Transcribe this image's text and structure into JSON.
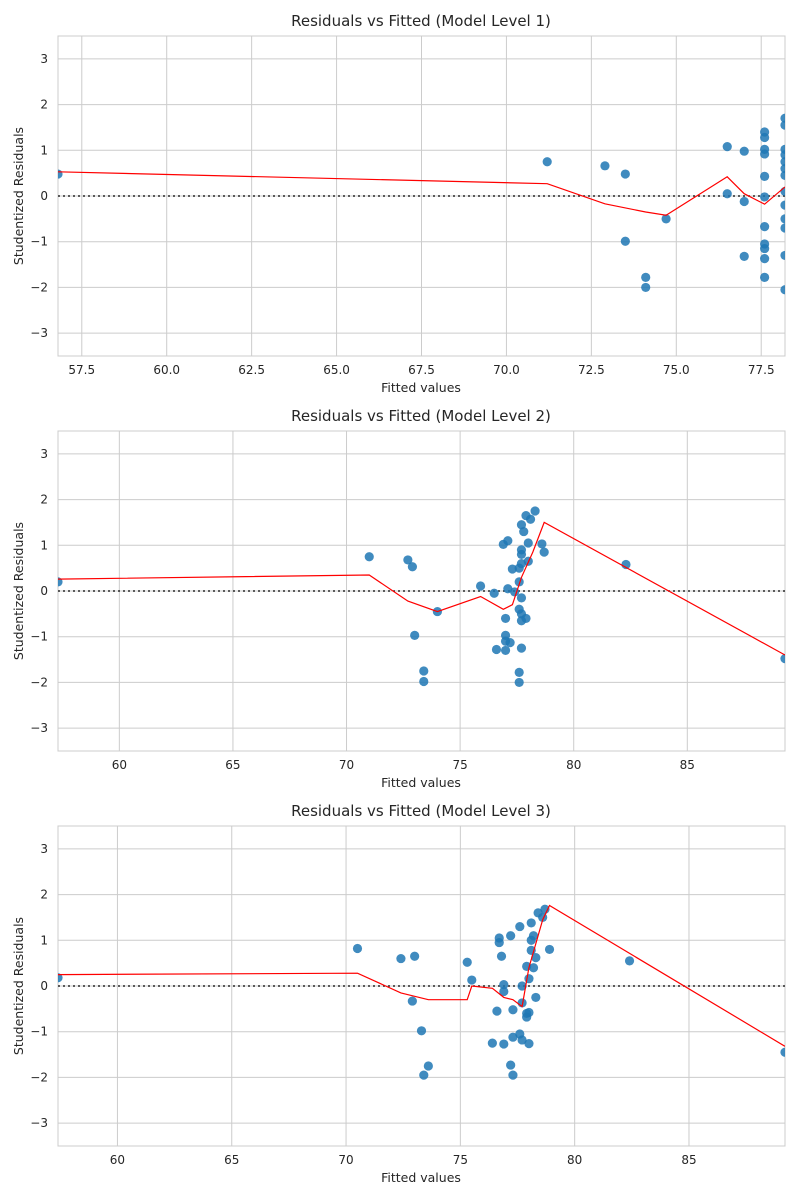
{
  "colors": {
    "points": "#1f77b4",
    "lowess": "#ff0000",
    "zero_line": "#262626",
    "grid": "#cccccc",
    "background": "#ffffff"
  },
  "chart_data": [
    {
      "type": "scatter",
      "title": "Residuals vs Fitted (Model Level 1)",
      "xlabel": "Fitted values",
      "ylabel": "Studentized Residuals",
      "xlim": [
        56.8,
        78.2
      ],
      "ylim": [
        -3.5,
        3.5
      ],
      "xticks": [
        "57.5",
        "60.0",
        "62.5",
        "65.0",
        "67.5",
        "70.0",
        "72.5",
        "75.0",
        "77.5"
      ],
      "yticks": [
        "3",
        "2",
        "1",
        "0",
        "−1",
        "−2",
        "−3"
      ],
      "grid": true,
      "reference_line": 0,
      "points": [
        [
          56.8,
          0.48
        ],
        [
          71.2,
          0.75
        ],
        [
          72.9,
          0.66
        ],
        [
          73.5,
          0.48
        ],
        [
          73.5,
          -0.99
        ],
        [
          74.1,
          -1.78
        ],
        [
          74.1,
          -2.0
        ],
        [
          74.7,
          -0.5
        ],
        [
          76.5,
          1.08
        ],
        [
          76.5,
          0.05
        ],
        [
          77.0,
          0.98
        ],
        [
          77.0,
          -0.12
        ],
        [
          77.0,
          -1.32
        ],
        [
          77.6,
          1.4
        ],
        [
          77.6,
          1.28
        ],
        [
          77.6,
          1.02
        ],
        [
          77.6,
          0.92
        ],
        [
          77.6,
          0.43
        ],
        [
          77.6,
          -0.02
        ],
        [
          77.6,
          -0.67
        ],
        [
          77.6,
          -1.05
        ],
        [
          77.6,
          -1.15
        ],
        [
          77.6,
          -1.37
        ],
        [
          77.6,
          -1.78
        ],
        [
          78.2,
          1.7
        ],
        [
          78.2,
          1.55
        ],
        [
          78.2,
          1.02
        ],
        [
          78.2,
          0.9
        ],
        [
          78.2,
          0.75
        ],
        [
          78.2,
          0.6
        ],
        [
          78.2,
          0.45
        ],
        [
          78.2,
          0.1
        ],
        [
          78.2,
          -0.2
        ],
        [
          78.2,
          -0.5
        ],
        [
          78.2,
          -0.7
        ],
        [
          78.2,
          -1.3
        ],
        [
          78.2,
          -2.05
        ]
      ],
      "lowess": [
        [
          56.8,
          0.53
        ],
        [
          71.2,
          0.27
        ],
        [
          72.9,
          -0.17
        ],
        [
          74.1,
          -0.35
        ],
        [
          74.7,
          -0.42
        ],
        [
          76.5,
          0.42
        ],
        [
          77.0,
          0.05
        ],
        [
          77.6,
          -0.18
        ],
        [
          78.2,
          0.2
        ]
      ]
    },
    {
      "type": "scatter",
      "title": "Residuals vs Fitted (Model Level 2)",
      "xlabel": "Fitted values",
      "ylabel": "Studentized Residuals",
      "xlim": [
        57.3,
        89.3
      ],
      "ylim": [
        -3.5,
        3.5
      ],
      "xticks": [
        "60",
        "65",
        "70",
        "75",
        "80",
        "85"
      ],
      "yticks": [
        "3",
        "2",
        "1",
        "0",
        "−1",
        "−2",
        "−3"
      ],
      "grid": true,
      "reference_line": 0,
      "points": [
        [
          57.3,
          0.2
        ],
        [
          71.0,
          0.75
        ],
        [
          72.7,
          0.68
        ],
        [
          72.9,
          0.53
        ],
        [
          73.0,
          -0.97
        ],
        [
          73.4,
          -1.75
        ],
        [
          73.4,
          -1.98
        ],
        [
          74.0,
          -0.45
        ],
        [
          75.9,
          0.11
        ],
        [
          76.5,
          -0.05
        ],
        [
          76.6,
          -1.28
        ],
        [
          76.9,
          1.02
        ],
        [
          77.0,
          -0.6
        ],
        [
          77.0,
          -0.97
        ],
        [
          77.1,
          1.1
        ],
        [
          77.0,
          -1.1
        ],
        [
          77.1,
          0.05
        ],
        [
          77.2,
          -1.13
        ],
        [
          77.0,
          -1.3
        ],
        [
          77.3,
          0.48
        ],
        [
          77.4,
          -0.02
        ],
        [
          77.6,
          -0.4
        ],
        [
          77.6,
          0.5
        ],
        [
          77.6,
          -1.78
        ],
        [
          77.6,
          -2.0
        ],
        [
          77.6,
          0.2
        ],
        [
          77.7,
          1.45
        ],
        [
          77.7,
          0.9
        ],
        [
          77.7,
          0.8
        ],
        [
          77.7,
          0.6
        ],
        [
          77.7,
          -0.15
        ],
        [
          77.7,
          -0.5
        ],
        [
          77.7,
          -0.65
        ],
        [
          77.7,
          -1.25
        ],
        [
          77.8,
          1.3
        ],
        [
          77.9,
          1.65
        ],
        [
          77.9,
          -0.6
        ],
        [
          78.0,
          1.05
        ],
        [
          78.0,
          0.65
        ],
        [
          78.1,
          1.57
        ],
        [
          78.3,
          1.75
        ],
        [
          78.6,
          1.03
        ],
        [
          78.7,
          0.85
        ],
        [
          82.3,
          0.58
        ],
        [
          89.3,
          -1.48
        ]
      ],
      "lowess": [
        [
          57.3,
          0.26
        ],
        [
          71.0,
          0.35
        ],
        [
          72.7,
          -0.22
        ],
        [
          74.0,
          -0.45
        ],
        [
          75.9,
          -0.12
        ],
        [
          76.9,
          -0.4
        ],
        [
          77.3,
          -0.3
        ],
        [
          77.7,
          0.3
        ],
        [
          78.2,
          0.85
        ],
        [
          78.7,
          1.5
        ],
        [
          89.3,
          -1.4
        ]
      ]
    },
    {
      "type": "scatter",
      "title": "Residuals vs Fitted (Model Level 3)",
      "xlabel": "Fitted values",
      "ylabel": "Studentized Residuals",
      "xlim": [
        57.4,
        89.2
      ],
      "ylim": [
        -3.5,
        3.5
      ],
      "xticks": [
        "60",
        "65",
        "70",
        "75",
        "80",
        "85"
      ],
      "yticks": [
        "3",
        "2",
        "1",
        "0",
        "−1",
        "−2",
        "−3"
      ],
      "grid": true,
      "reference_line": 0,
      "points": [
        [
          57.4,
          0.18
        ],
        [
          70.5,
          0.82
        ],
        [
          72.4,
          0.6
        ],
        [
          73.0,
          0.65
        ],
        [
          72.9,
          -0.33
        ],
        [
          73.3,
          -0.98
        ],
        [
          73.4,
          -1.95
        ],
        [
          73.6,
          -1.75
        ],
        [
          75.3,
          0.52
        ],
        [
          75.5,
          0.13
        ],
        [
          76.4,
          -1.25
        ],
        [
          76.6,
          -0.55
        ],
        [
          76.7,
          1.05
        ],
        [
          76.7,
          0.95
        ],
        [
          76.8,
          0.65
        ],
        [
          76.9,
          0.03
        ],
        [
          76.9,
          -0.12
        ],
        [
          76.9,
          -1.27
        ],
        [
          77.2,
          1.1
        ],
        [
          77.3,
          -0.52
        ],
        [
          77.3,
          -1.12
        ],
        [
          77.2,
          -1.73
        ],
        [
          77.3,
          -1.95
        ],
        [
          77.6,
          1.3
        ],
        [
          77.6,
          -1.05
        ],
        [
          77.7,
          -0.37
        ],
        [
          77.7,
          0.0
        ],
        [
          77.7,
          -1.18
        ],
        [
          77.9,
          0.43
        ],
        [
          77.9,
          -0.6
        ],
        [
          77.9,
          -0.68
        ],
        [
          78.0,
          0.16
        ],
        [
          78.0,
          -0.58
        ],
        [
          78.0,
          -1.26
        ],
        [
          78.1,
          1.38
        ],
        [
          78.1,
          1.0
        ],
        [
          78.1,
          0.78
        ],
        [
          78.2,
          1.1
        ],
        [
          78.2,
          0.4
        ],
        [
          78.3,
          0.62
        ],
        [
          78.3,
          -0.25
        ],
        [
          78.4,
          1.6
        ],
        [
          78.6,
          1.5
        ],
        [
          78.7,
          1.68
        ],
        [
          78.9,
          0.8
        ],
        [
          82.4,
          0.55
        ],
        [
          89.2,
          -1.45
        ]
      ],
      "lowess": [
        [
          57.4,
          0.25
        ],
        [
          70.5,
          0.28
        ],
        [
          72.4,
          -0.15
        ],
        [
          73.6,
          -0.3
        ],
        [
          75.3,
          -0.3
        ],
        [
          75.5,
          0.0
        ],
        [
          76.4,
          -0.05
        ],
        [
          76.9,
          -0.25
        ],
        [
          77.3,
          -0.3
        ],
        [
          77.7,
          -0.45
        ],
        [
          78.0,
          0.4
        ],
        [
          78.6,
          1.45
        ],
        [
          78.9,
          1.76
        ],
        [
          89.2,
          -1.32
        ]
      ]
    }
  ]
}
